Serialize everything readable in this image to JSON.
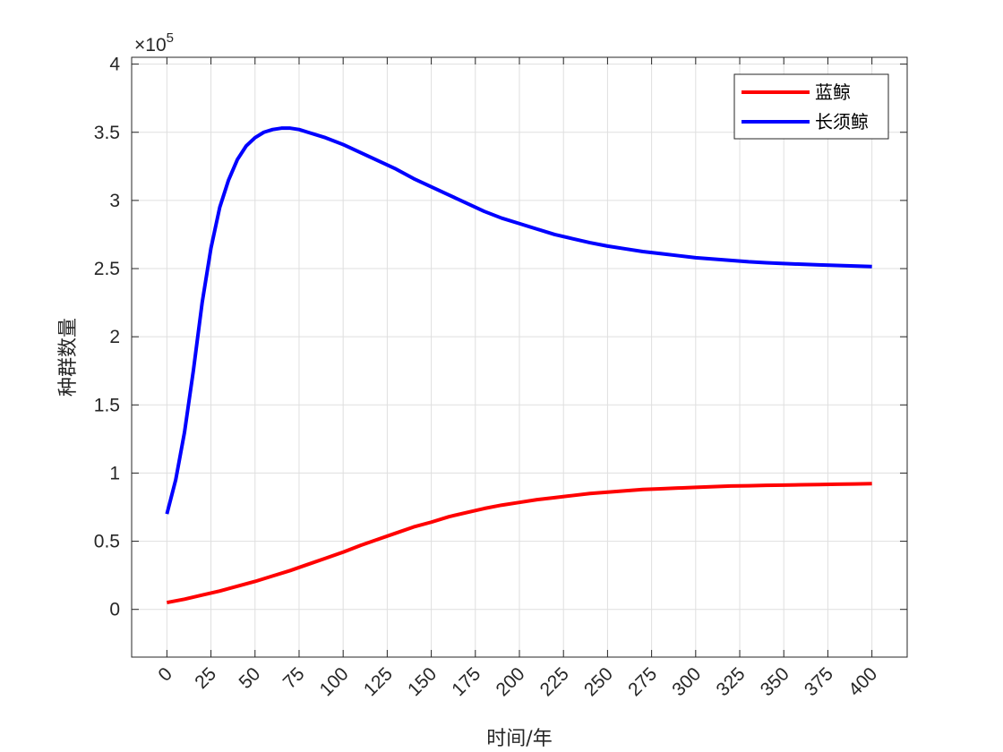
{
  "chart_data": {
    "type": "line",
    "xlabel": "时间/年",
    "ylabel": "种群数量",
    "xlim": [
      -20,
      420
    ],
    "ylim": [
      -0.35,
      4.05
    ],
    "y_multiplier": {
      "base": "×10",
      "exponent": "5"
    },
    "x_ticks": [
      0,
      25,
      50,
      75,
      100,
      125,
      150,
      175,
      200,
      225,
      250,
      275,
      300,
      325,
      350,
      375,
      400
    ],
    "x_tick_labels": [
      "0",
      "25",
      "50",
      "75",
      "100",
      "125",
      "150",
      "175",
      "200",
      "225",
      "250",
      "275",
      "300",
      "325",
      "350",
      "375",
      "400"
    ],
    "y_ticks": [
      0,
      0.5,
      1,
      1.5,
      2,
      2.5,
      3,
      3.5,
      4
    ],
    "y_tick_labels": [
      "0",
      "0.5",
      "1",
      "1.5",
      "2",
      "2.5",
      "3",
      "3.5",
      "4"
    ],
    "grid": true,
    "legend_position": "top-right",
    "series": [
      {
        "name": "蓝鲸",
        "color": "#ff0000",
        "x": [
          0,
          10,
          20,
          30,
          40,
          50,
          60,
          70,
          80,
          90,
          100,
          110,
          120,
          130,
          140,
          150,
          160,
          170,
          180,
          190,
          200,
          210,
          220,
          230,
          240,
          250,
          260,
          270,
          280,
          290,
          300,
          310,
          320,
          330,
          340,
          350,
          360,
          370,
          380,
          390,
          400
        ],
        "y": [
          0.05,
          0.075,
          0.105,
          0.135,
          0.17,
          0.205,
          0.245,
          0.285,
          0.33,
          0.375,
          0.42,
          0.47,
          0.515,
          0.56,
          0.605,
          0.64,
          0.68,
          0.71,
          0.74,
          0.765,
          0.785,
          0.805,
          0.82,
          0.835,
          0.85,
          0.86,
          0.87,
          0.88,
          0.885,
          0.89,
          0.895,
          0.9,
          0.905,
          0.907,
          0.91,
          0.912,
          0.914,
          0.916,
          0.918,
          0.92,
          0.922
        ]
      },
      {
        "name": "长须鲸",
        "color": "#0000ff",
        "x": [
          0,
          5,
          10,
          15,
          20,
          25,
          30,
          35,
          40,
          45,
          50,
          55,
          60,
          65,
          70,
          75,
          80,
          90,
          100,
          110,
          120,
          130,
          140,
          150,
          160,
          170,
          180,
          190,
          200,
          210,
          220,
          230,
          240,
          250,
          260,
          270,
          280,
          290,
          300,
          310,
          320,
          330,
          340,
          350,
          360,
          370,
          380,
          390,
          400
        ],
        "y": [
          0.7,
          0.95,
          1.3,
          1.75,
          2.25,
          2.65,
          2.95,
          3.15,
          3.3,
          3.4,
          3.46,
          3.5,
          3.52,
          3.53,
          3.53,
          3.52,
          3.5,
          3.46,
          3.41,
          3.35,
          3.29,
          3.23,
          3.16,
          3.1,
          3.04,
          2.98,
          2.92,
          2.87,
          2.83,
          2.79,
          2.75,
          2.72,
          2.69,
          2.665,
          2.645,
          2.625,
          2.61,
          2.595,
          2.58,
          2.57,
          2.56,
          2.55,
          2.543,
          2.537,
          2.532,
          2.527,
          2.523,
          2.519,
          2.515
        ]
      }
    ]
  }
}
